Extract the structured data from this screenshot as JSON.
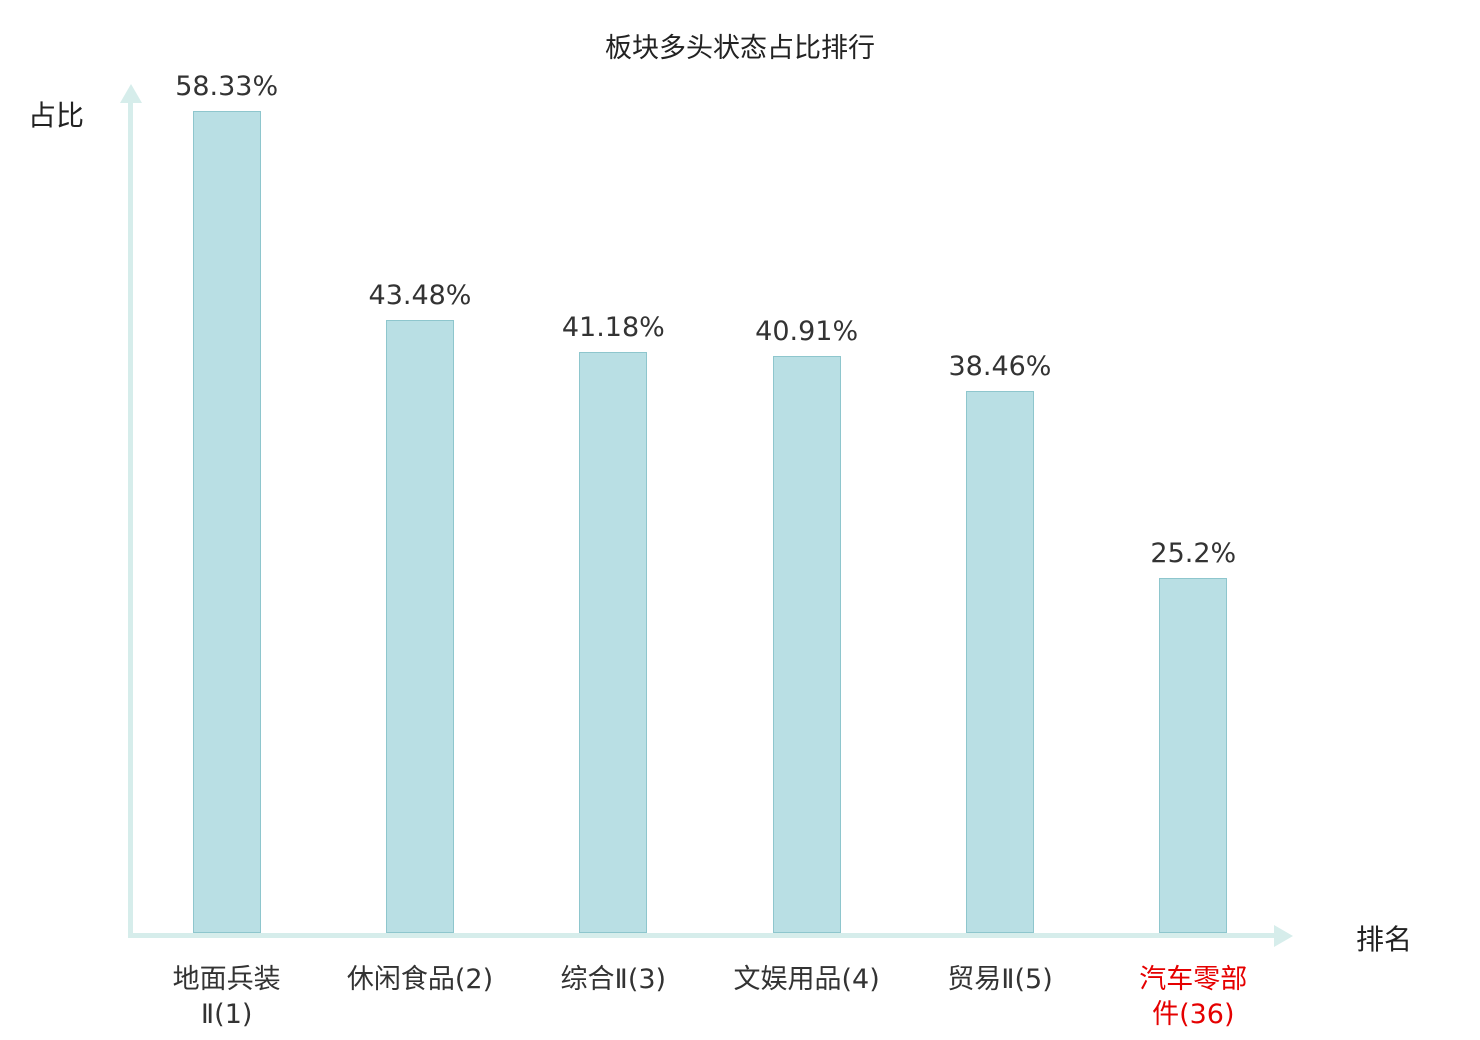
{
  "title": "板块多头状态占比排行",
  "ylabel": "占比",
  "xlabel": "排名",
  "colors": {
    "bar_fill": "#b9dfe4",
    "bar_border": "#8ec6cd",
    "axis": "#d6edeb",
    "label_text": "#333333",
    "highlight": "#e50000"
  },
  "chart_data": {
    "type": "bar",
    "title": "板块多头状态占比排行",
    "xlabel": "排名",
    "ylabel": "占比",
    "categories": [
      "地面兵装Ⅱ(1)",
      "休闲食品(2)",
      "综合Ⅱ(3)",
      "文娱用品(4)",
      "贸易Ⅱ(5)",
      "汽车零部件(36)"
    ],
    "category_lines": [
      [
        "地面兵装",
        "Ⅱ(1)"
      ],
      [
        "休闲食品(2)"
      ],
      [
        "综合Ⅱ(3)"
      ],
      [
        "文娱用品(4)"
      ],
      [
        "贸易Ⅱ(5)"
      ],
      [
        "汽车零部",
        "件(36)"
      ]
    ],
    "values": [
      58.33,
      43.48,
      41.18,
      40.91,
      38.46,
      25.2
    ],
    "value_labels": [
      "58.33%",
      "43.48%",
      "41.18%",
      "40.91%",
      "38.46%",
      "25.2%"
    ],
    "highlight_index": 5,
    "ylim": [
      0,
      60
    ],
    "grid": false,
    "legend": "none"
  }
}
